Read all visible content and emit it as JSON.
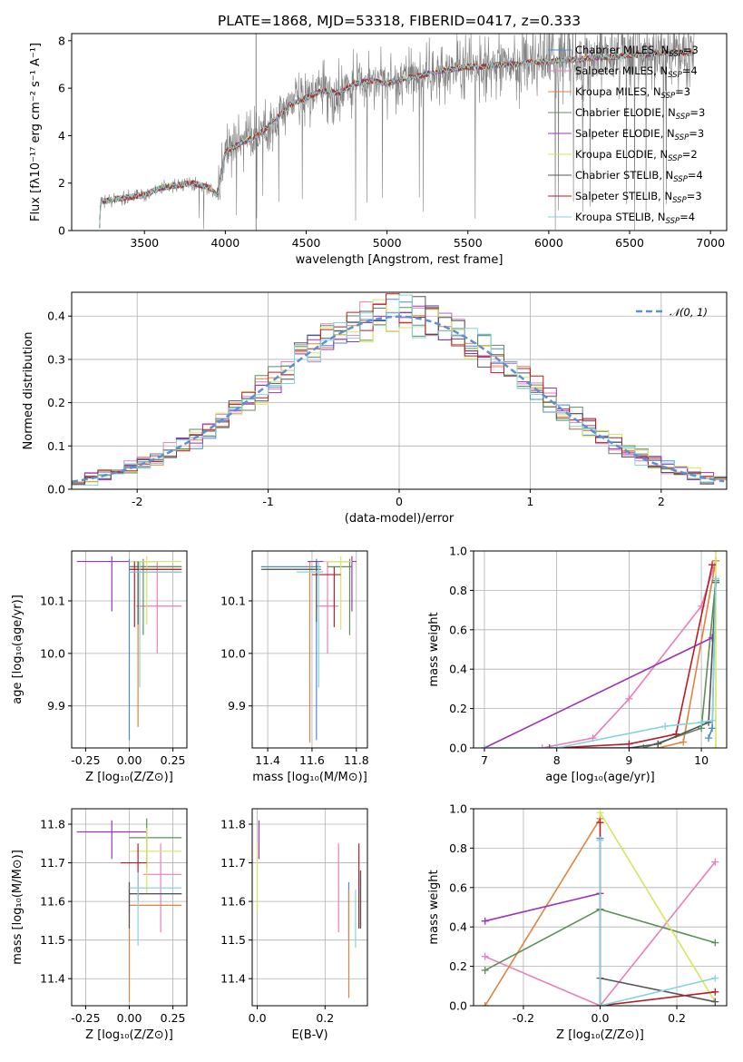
{
  "figure": {
    "title": "PLATE=1868, MJD=53318, FIBERID=0417, z=0.333"
  },
  "colors": {
    "Chabrier MILES": "#4a8bd9",
    "Salpeter MILES": "#e87fb9",
    "Kroupa MILES": "#e0833d",
    "Chabrier ELODIE": "#5c8f5c",
    "Salpeter ELODIE": "#9b34b8",
    "Kroupa ELODIE": "#d9e55e",
    "Chabrier STELIB": "#555555",
    "Salpeter STELIB": "#b51e26",
    "Kroupa STELIB": "#86d4dc",
    "spectrum": "#808080",
    "normal_curve": "#5b8fd6"
  },
  "chart_data": [
    {
      "id": "spectrum",
      "type": "line",
      "title": "PLATE=1868, MJD=53318, FIBERID=0417, z=0.333",
      "xlabel": "wavelength [Angstrom, rest frame]",
      "ylabel": "Flux [fλ10⁻¹⁷ erg cm⁻² s⁻¹ A⁻¹]",
      "xlim": [
        3050,
        7100
      ],
      "ylim": [
        0,
        8.3
      ],
      "xticks": [
        3500,
        4000,
        4500,
        5000,
        5500,
        6000,
        6500,
        7000
      ],
      "yticks": [
        0,
        2,
        4,
        6,
        8
      ],
      "grid": false,
      "legend_position": "top-right",
      "spectrum_anchors": {
        "x": [
          3220,
          3230,
          3300,
          3400,
          3500,
          3600,
          3700,
          3800,
          3900,
          3950,
          4000,
          4100,
          4200,
          4300,
          4400,
          4500,
          4600,
          4700,
          4800,
          4900,
          5000,
          5100,
          5200,
          5300,
          5400,
          5500,
          5600,
          5700,
          5800,
          5900,
          6000,
          6100,
          6200,
          6300,
          6400,
          6500,
          6600,
          6700,
          6800,
          6900
        ],
        "y": [
          0,
          1.2,
          1.3,
          1.4,
          1.5,
          1.8,
          1.9,
          2.0,
          1.8,
          1.5,
          3.3,
          3.7,
          4.0,
          4.6,
          5.3,
          5.6,
          5.9,
          5.8,
          6.2,
          6.3,
          6.2,
          6.4,
          6.5,
          6.7,
          6.8,
          6.9,
          6.9,
          7.0,
          7.0,
          7.1,
          7.1,
          7.2,
          7.2,
          7.3,
          7.3,
          7.4,
          7.4,
          7.5,
          7.5,
          7.5
        ]
      },
      "series": [
        {
          "name": "Chabrier MILES, N_SSP=3",
          "label_main": "Chabrier MILES, N",
          "label_sub": "SSP",
          "label_tail": "=3",
          "color": "#4a8bd9"
        },
        {
          "name": "Salpeter MILES, N_SSP=4",
          "label_main": "Salpeter MILES, N",
          "label_sub": "SSP",
          "label_tail": "=4",
          "color": "#e87fb9"
        },
        {
          "name": "Kroupa MILES, N_SSP=3",
          "label_main": "Kroupa MILES, N",
          "label_sub": "SSP",
          "label_tail": "=3",
          "color": "#e0833d"
        },
        {
          "name": "Chabrier ELODIE, N_SSP=3",
          "label_main": "Chabrier ELODIE, N",
          "label_sub": "SSP",
          "label_tail": "=3",
          "color": "#5c8f5c"
        },
        {
          "name": "Salpeter ELODIE, N_SSP=3",
          "label_main": "Salpeter ELODIE, N",
          "label_sub": "SSP",
          "label_tail": "=3",
          "color": "#9b34b8"
        },
        {
          "name": "Kroupa ELODIE, N_SSP=2",
          "label_main": "Kroupa ELODIE, N",
          "label_sub": "SSP",
          "label_tail": "=2",
          "color": "#d9e55e"
        },
        {
          "name": "Chabrier STELIB, N_SSP=4",
          "label_main": "Chabrier STELIB, N",
          "label_sub": "SSP",
          "label_tail": "=4",
          "color": "#555555"
        },
        {
          "name": "Salpeter STELIB, N_SSP=3",
          "label_main": "Salpeter STELIB, N",
          "label_sub": "SSP",
          "label_tail": "=3",
          "color": "#b51e26"
        },
        {
          "name": "Kroupa STELIB, N_SSP=4",
          "label_main": "Kroupa STELIB, N",
          "label_sub": "SSP",
          "label_tail": "=4",
          "color": "#86d4dc"
        }
      ]
    },
    {
      "id": "residuals",
      "type": "step",
      "xlabel": "(data-model)/error",
      "ylabel": "Normed distribution",
      "xlim": [
        -2.5,
        2.5
      ],
      "ylim": [
        0,
        0.455
      ],
      "xticks": [
        -2,
        -1,
        0,
        1,
        2
      ],
      "yticks": [
        0.0,
        0.1,
        0.2,
        0.3,
        0.4
      ],
      "grid": true,
      "legend": "𝒩(0, 1)",
      "legend_position": "top-right",
      "bin_width": 0.1
    },
    {
      "id": "age-vs-Z",
      "type": "errorbar",
      "xlabel": "Z [log₁₀(Z/Z⊙)]",
      "ylabel": "age  [log₁₀(age/yr)]",
      "xlim": [
        -0.33,
        0.33
      ],
      "ylim": [
        9.82,
        10.195
      ],
      "xticks": [
        -0.25,
        0.0,
        0.25
      ],
      "yticks": [
        9.9,
        10.0,
        10.1
      ],
      "grid": true,
      "points": [
        {
          "series": "Chabrier MILES",
          "x": 0.0,
          "y": 10.165,
          "xerr": [
            0.0,
            0.3
          ],
          "yerr": [
            0.33,
            0.015
          ]
        },
        {
          "series": "Salpeter MILES",
          "x": 0.16,
          "y": 10.09,
          "xerr": [
            0.12,
            0.14
          ],
          "yerr": [
            0.09,
            0.085
          ]
        },
        {
          "series": "Kroupa MILES",
          "x": 0.05,
          "y": 10.16,
          "xerr": [
            0.05,
            0.25
          ],
          "yerr": [
            0.3,
            0.015
          ]
        },
        {
          "series": "Chabrier ELODIE",
          "x": 0.08,
          "y": 10.165,
          "xerr": [
            0.08,
            0.22
          ],
          "yerr": [
            0.13,
            0.015
          ]
        },
        {
          "series": "Salpeter ELODIE",
          "x": -0.1,
          "y": 10.175,
          "xerr": [
            0.2,
            0.25
          ],
          "yerr": [
            0.095,
            0.01
          ]
        },
        {
          "series": "Kroupa ELODIE",
          "x": 0.1,
          "y": 10.175,
          "xerr": [
            0.1,
            0.2
          ],
          "yerr": [
            0.12,
            0.01
          ]
        },
        {
          "series": "Chabrier STELIB",
          "x": 0.05,
          "y": 10.155,
          "xerr": [
            0.05,
            0.25
          ],
          "yerr": [
            0.1,
            0.02
          ]
        },
        {
          "series": "Salpeter STELIB",
          "x": 0.03,
          "y": 10.16,
          "xerr": [
            0.03,
            0.27
          ],
          "yerr": [
            0.11,
            0.015
          ]
        },
        {
          "series": "Kroupa STELIB",
          "x": 0.06,
          "y": 10.155,
          "xerr": [
            0.06,
            0.24
          ],
          "yerr": [
            0.22,
            0.02
          ]
        }
      ]
    },
    {
      "id": "age-vs-mass",
      "type": "errorbar",
      "xlabel": "mass [log₁₀(M/M⊙)]",
      "ylabel": "",
      "xlim": [
        11.33,
        11.85
      ],
      "ylim": [
        9.82,
        10.195
      ],
      "xticks": [
        11.4,
        11.6,
        11.8
      ],
      "yticks": [
        9.9,
        10.0,
        10.1
      ],
      "grid": true,
      "points": [
        {
          "series": "Chabrier MILES",
          "x": 11.62,
          "y": 10.165,
          "xerr": [
            0.25,
            0.02
          ],
          "yerr": [
            0.33,
            0.015
          ]
        },
        {
          "series": "Salpeter MILES",
          "x": 11.67,
          "y": 10.09,
          "xerr": [
            0.05,
            0.05
          ],
          "yerr": [
            0.09,
            0.085
          ]
        },
        {
          "series": "Kroupa MILES",
          "x": 11.59,
          "y": 10.16,
          "xerr": [
            0.2,
            0.02
          ],
          "yerr": [
            0.33,
            0.015
          ]
        },
        {
          "series": "Chabrier ELODIE",
          "x": 11.77,
          "y": 10.165,
          "xerr": [
            0.1,
            0.01
          ],
          "yerr": [
            0.13,
            0.015
          ]
        },
        {
          "series": "Salpeter ELODIE",
          "x": 11.78,
          "y": 10.175,
          "xerr": [
            0.2,
            0.02
          ],
          "yerr": [
            0.095,
            0.01
          ]
        },
        {
          "series": "Kroupa ELODIE",
          "x": 11.73,
          "y": 10.175,
          "xerr": [
            0.08,
            0.05
          ],
          "yerr": [
            0.13,
            0.01
          ]
        },
        {
          "series": "Chabrier STELIB",
          "x": 11.62,
          "y": 10.16,
          "xerr": [
            0.25,
            0.02
          ],
          "yerr": [
            0.1,
            0.015
          ]
        },
        {
          "series": "Salpeter STELIB",
          "x": 11.7,
          "y": 10.15,
          "xerr": [
            0.1,
            0.03
          ],
          "yerr": [
            0.1,
            0.015
          ]
        },
        {
          "series": "Kroupa STELIB",
          "x": 11.63,
          "y": 10.155,
          "xerr": [
            0.1,
            0.02
          ],
          "yerr": [
            0.22,
            0.02
          ]
        }
      ]
    },
    {
      "id": "mass-weight-vs-age",
      "type": "line",
      "xlabel": "age  [log₁₀(age/yr)]",
      "ylabel": "mass weight",
      "xlim": [
        6.85,
        10.35
      ],
      "ylim": [
        0,
        1.0
      ],
      "xticks": [
        7,
        8,
        9,
        10
      ],
      "yticks": [
        0.0,
        0.2,
        0.4,
        0.6,
        0.8,
        1.0
      ],
      "grid": true,
      "series": [
        {
          "series": "Chabrier MILES",
          "x": [
            10.1,
            10.15,
            10.2
          ],
          "y": [
            0.05,
            0.1,
            0.85
          ]
        },
        {
          "series": "Salpeter MILES",
          "x": [
            7.8,
            8.5,
            9.0,
            10.0,
            10.2
          ],
          "y": [
            0.0,
            0.05,
            0.25,
            0.72,
            0.95
          ]
        },
        {
          "series": "Kroupa MILES",
          "x": [
            9.4,
            9.75,
            10.2
          ],
          "y": [
            0.0,
            0.03,
            0.95
          ]
        },
        {
          "series": "Chabrier ELODIE",
          "x": [
            9.2,
            10.0,
            10.2
          ],
          "y": [
            0.0,
            0.1,
            0.85
          ]
        },
        {
          "series": "Salpeter ELODIE",
          "x": [
            7.0,
            10.15
          ],
          "y": [
            0.0,
            0.56
          ]
        },
        {
          "series": "Kroupa ELODIE",
          "x": [
            10.2,
            10.2
          ],
          "y": [
            0.0,
            1.0
          ]
        },
        {
          "series": "Chabrier STELIB",
          "x": [
            7.9,
            9.0,
            9.4,
            10.1,
            10.2
          ],
          "y": [
            0.0,
            0.0,
            0.02,
            0.13,
            0.84
          ]
        },
        {
          "series": "Salpeter STELIB",
          "x": [
            8.0,
            9.0,
            9.65,
            10.15
          ],
          "y": [
            0.0,
            0.02,
            0.07,
            0.93
          ]
        },
        {
          "series": "Kroupa STELIB",
          "x": [
            7.0,
            8.0,
            9.5,
            10.0,
            10.15,
            10.2
          ],
          "y": [
            0.0,
            0.0,
            0.11,
            0.13,
            0.14,
            0.86
          ]
        }
      ]
    },
    {
      "id": "mass-vs-Z",
      "type": "errorbar",
      "xlabel": "Z [log₁₀(Z/Z⊙)]",
      "ylabel": "mass [log₁₀(M/M⊙)]",
      "xlim": [
        -0.33,
        0.33
      ],
      "ylim": [
        11.33,
        11.84
      ],
      "xticks": [
        -0.25,
        0.0,
        0.25
      ],
      "yticks": [
        11.4,
        11.5,
        11.6,
        11.7,
        11.8
      ],
      "grid": true,
      "points": [
        {
          "series": "Chabrier MILES",
          "x": 0.0,
          "y": 11.62,
          "xerr": [
            0.0,
            0.3
          ],
          "yerr": [
            0.05,
            0.03
          ]
        },
        {
          "series": "Salpeter MILES",
          "x": 0.18,
          "y": 11.67,
          "xerr": [
            0.1,
            0.12
          ],
          "yerr": [
            0.15,
            0.08
          ]
        },
        {
          "series": "Kroupa MILES",
          "x": 0.0,
          "y": 11.59,
          "xerr": [
            0.0,
            0.3
          ],
          "yerr": [
            0.25,
            0.05
          ]
        },
        {
          "series": "Chabrier ELODIE",
          "x": 0.1,
          "y": 11.765,
          "xerr": [
            0.1,
            0.2
          ],
          "yerr": [
            0.08,
            0.05
          ]
        },
        {
          "series": "Salpeter ELODIE",
          "x": -0.1,
          "y": 11.78,
          "xerr": [
            0.2,
            0.2
          ],
          "yerr": [
            0.07,
            0.03
          ]
        },
        {
          "series": "Kroupa ELODIE",
          "x": 0.1,
          "y": 11.73,
          "xerr": [
            0.1,
            0.2
          ],
          "yerr": [
            0.11,
            0.06
          ]
        },
        {
          "series": "Chabrier STELIB",
          "x": 0.0,
          "y": 11.62,
          "xerr": [
            0.0,
            0.3
          ],
          "yerr": [
            0.09,
            0.03
          ]
        },
        {
          "series": "Salpeter STELIB",
          "x": 0.05,
          "y": 11.7,
          "xerr": [
            0.1,
            0.05
          ],
          "yerr": [
            0.1,
            0.05
          ]
        },
        {
          "series": "Kroupa STELIB",
          "x": 0.05,
          "y": 11.635,
          "xerr": [
            0.05,
            0.25
          ],
          "yerr": [
            0.15,
            0.04
          ]
        }
      ]
    },
    {
      "id": "mass-vs-EBV",
      "type": "errorbar",
      "xlabel": "E(B-V)",
      "ylabel": "",
      "xlim": [
        -0.015,
        0.325
      ],
      "ylim": [
        11.33,
        11.84
      ],
      "xticks": [
        0.0,
        0.2
      ],
      "yticks": [
        11.4,
        11.5,
        11.6,
        11.7,
        11.8
      ],
      "grid": true,
      "points": [
        {
          "series": "Chabrier MILES",
          "x": 0.27,
          "y": 11.6,
          "xerr": [
            0,
            0
          ],
          "yerr": [
            0.1,
            0.05
          ]
        },
        {
          "series": "Salpeter MILES",
          "x": 0.24,
          "y": 11.62,
          "xerr": [
            0,
            0
          ],
          "yerr": [
            0.1,
            0.13
          ]
        },
        {
          "series": "Kroupa MILES",
          "x": 0.27,
          "y": 11.59,
          "xerr": [
            0,
            0
          ],
          "yerr": [
            0.24,
            0.04
          ]
        },
        {
          "series": "Chabrier ELODIE",
          "x": 0.3,
          "y": 11.6,
          "xerr": [
            0,
            0
          ],
          "yerr": [
            0.07,
            0.08
          ]
        },
        {
          "series": "Salpeter ELODIE",
          "x": 0.005,
          "y": 11.78,
          "xerr": [
            0,
            0
          ],
          "yerr": [
            0.07,
            0.03
          ]
        },
        {
          "series": "Kroupa ELODIE",
          "x": 0.0,
          "y": 11.7,
          "xerr": [
            0,
            0
          ],
          "yerr": [
            0.13,
            0.05
          ]
        },
        {
          "series": "Chabrier STELIB",
          "x": 0.305,
          "y": 11.6,
          "xerr": [
            0,
            0
          ],
          "yerr": [
            0.07,
            0.08
          ]
        },
        {
          "series": "Salpeter STELIB",
          "x": 0.3,
          "y": 11.68,
          "xerr": [
            0,
            0
          ],
          "yerr": [
            0.15,
            0.07
          ]
        },
        {
          "series": "Kroupa STELIB",
          "x": 0.29,
          "y": 11.6,
          "xerr": [
            0,
            0
          ],
          "yerr": [
            0.12,
            0.03
          ]
        }
      ]
    },
    {
      "id": "mass-weight-vs-Z",
      "type": "line",
      "xlabel": "Z [log₁₀(Z/Z⊙)]",
      "ylabel": "mass weight",
      "xlim": [
        -0.33,
        0.33
      ],
      "ylim": [
        0,
        1.0
      ],
      "xticks": [
        -0.2,
        0.0,
        0.2
      ],
      "yticks": [
        0.0,
        0.2,
        0.4,
        0.6,
        0.8,
        1.0
      ],
      "grid": true,
      "series": [
        {
          "series": "Chabrier MILES",
          "x": [
            0.0,
            0.0
          ],
          "y": [
            0.0,
            0.85
          ]
        },
        {
          "series": "Salpeter MILES",
          "x": [
            -0.3,
            0.0,
            0.3
          ],
          "y": [
            0.25,
            0.0,
            0.73
          ]
        },
        {
          "series": "Kroupa MILES",
          "x": [
            -0.3,
            0.0
          ],
          "y": [
            0.0,
            0.95
          ]
        },
        {
          "series": "Chabrier ELODIE",
          "x": [
            -0.3,
            0.0,
            0.3
          ],
          "y": [
            0.18,
            0.49,
            0.32
          ]
        },
        {
          "series": "Salpeter ELODIE",
          "x": [
            -0.3,
            0.0
          ],
          "y": [
            0.43,
            0.57
          ]
        },
        {
          "series": "Kroupa ELODIE",
          "x": [
            0.0,
            0.3
          ],
          "y": [
            0.98,
            0.02
          ]
        },
        {
          "series": "Chabrier STELIB",
          "x": [
            0.0,
            0.3
          ],
          "y": [
            0.14,
            0.02
          ]
        },
        {
          "series": "Salpeter STELIB",
          "x": [
            0.0,
            0.0,
            0.3
          ],
          "y": [
            0.93,
            0.0,
            0.07
          ]
        },
        {
          "series": "Kroupa STELIB",
          "x": [
            0.0,
            0.0,
            0.3
          ],
          "y": [
            0.84,
            0.0,
            0.14
          ]
        }
      ]
    }
  ]
}
